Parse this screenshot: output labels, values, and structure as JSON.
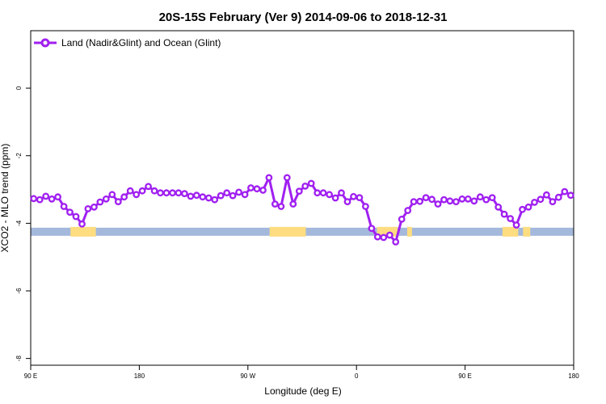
{
  "chart_data": {
    "type": "line",
    "title": "20S-15S February (Ver 9)   2014-09-06 to 2018-12-31",
    "xlabel": "Longitude (deg E)",
    "ylabel": "XCO2 - MLO trend (ppm)",
    "xlim": [
      90,
      540
    ],
    "ylim": [
      -8.2,
      1.7
    ],
    "x_ticks": [
      {
        "value": 90,
        "label": "90 E"
      },
      {
        "value": 180,
        "label": "180"
      },
      {
        "value": 270,
        "label": "90 W"
      },
      {
        "value": 360,
        "label": "0"
      },
      {
        "value": 450,
        "label": "90 E"
      },
      {
        "value": 540,
        "label": "180"
      }
    ],
    "y_ticks": [
      {
        "value": 0,
        "label": "0"
      },
      {
        "value": -2,
        "label": "-2"
      },
      {
        "value": -4,
        "label": "-4"
      },
      {
        "value": -6,
        "label": "-6"
      },
      {
        "value": -8,
        "label": "-8"
      }
    ],
    "legend": {
      "position": "top-left"
    },
    "series": [
      {
        "name": "Land (Nadir&Glint) and Ocean (Glint)",
        "color": "#a020f0",
        "x": [
          92.5,
          97.5,
          102.5,
          107.5,
          112.5,
          117.5,
          122.5,
          127.5,
          132.5,
          137.5,
          142.5,
          147.5,
          152.5,
          157.5,
          162.5,
          167.5,
          172.5,
          177.5,
          182.5,
          187.5,
          192.5,
          197.5,
          202.5,
          207.5,
          212.5,
          217.5,
          222.5,
          227.5,
          232.5,
          237.5,
          242.5,
          247.5,
          252.5,
          257.5,
          262.5,
          267.5,
          272.5,
          277.5,
          282.5,
          287.5,
          292.5,
          297.5,
          302.5,
          307.5,
          312.5,
          317.5,
          322.5,
          327.5,
          332.5,
          337.5,
          342.5,
          347.5,
          352.5,
          357.5,
          362.5,
          367.5,
          372.5,
          377.5,
          382.5,
          387.5,
          392.5,
          397.5,
          402.5,
          407.5,
          412.5,
          417.5,
          422.5,
          427.5,
          432.5,
          437.5,
          442.5,
          447.5,
          452.5,
          457.5,
          462.5,
          467.5,
          472.5,
          477.5,
          482.5,
          487.5,
          492.5,
          497.5,
          502.5,
          507.5,
          512.5,
          517.5,
          522.5,
          527.5,
          532.5,
          537.5
        ],
        "values": [
          -3.27,
          -3.3,
          -3.2,
          -3.28,
          -3.22,
          -3.5,
          -3.67,
          -3.8,
          -4.02,
          -3.57,
          -3.52,
          -3.37,
          -3.28,
          -3.15,
          -3.36,
          -3.22,
          -3.04,
          -3.15,
          -3.04,
          -2.91,
          -3.04,
          -3.1,
          -3.1,
          -3.1,
          -3.1,
          -3.12,
          -3.2,
          -3.17,
          -3.22,
          -3.25,
          -3.3,
          -3.18,
          -3.1,
          -3.18,
          -3.08,
          -3.15,
          -2.95,
          -2.98,
          -3.02,
          -2.65,
          -3.43,
          -3.5,
          -2.65,
          -3.43,
          -3.05,
          -2.9,
          -2.82,
          -3.1,
          -3.1,
          -3.15,
          -3.25,
          -3.1,
          -3.36,
          -3.21,
          -3.24,
          -3.5,
          -4.15,
          -4.4,
          -4.42,
          -4.35,
          -4.55,
          -3.88,
          -3.62,
          -3.36,
          -3.35,
          -3.24,
          -3.29,
          -3.43,
          -3.3,
          -3.34,
          -3.36,
          -3.28,
          -3.28,
          -3.34,
          -3.22,
          -3.3,
          -3.24,
          -3.52,
          -3.73,
          -3.86,
          -4.05,
          -3.59,
          -3.52,
          -3.38,
          -3.29,
          -3.16,
          -3.36,
          -3.23,
          -3.06,
          -3.17
        ]
      }
    ],
    "surface_band": {
      "y": -4.25,
      "ocean_color": "#a4b8dc",
      "land_color": "#fddd80",
      "land_segments": [
        [
          123,
          144
        ],
        [
          288,
          318
        ],
        [
          377,
          394
        ],
        [
          402,
          406
        ],
        [
          481,
          494
        ],
        [
          498,
          504
        ]
      ]
    }
  }
}
